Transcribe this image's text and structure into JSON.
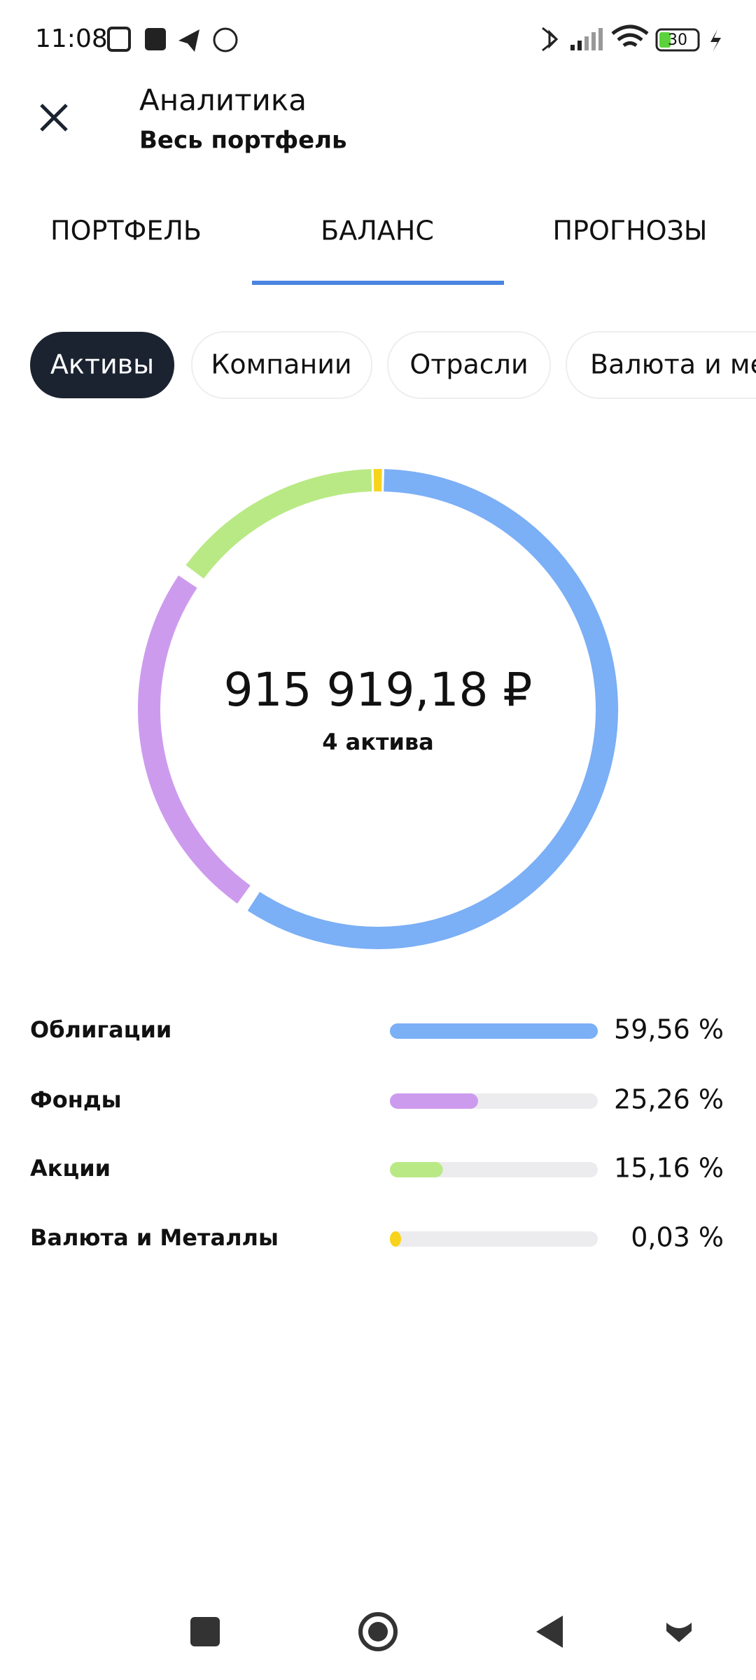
{
  "status_bar": {
    "time": "11:08",
    "battery": "30"
  },
  "header": {
    "title": "Аналитика",
    "subtitle": "Весь портфель"
  },
  "tabs": [
    "ПОРТФЕЛЬ",
    "БАЛАНС",
    "ПРОГНОЗЫ"
  ],
  "chips": [
    "Активы",
    "Компании",
    "Отрасли",
    "Валюта и металлы"
  ],
  "chart_data": {
    "type": "donut",
    "total": "915 919,18 ₽",
    "subtitle": "4 актива",
    "categories": [
      "Облигации",
      "Фонды",
      "Акции",
      "Валюта и Металлы"
    ],
    "values": [
      59.56,
      25.26,
      15.16,
      0.03
    ],
    "value_labels": [
      "59,56 %",
      "25,26 %",
      "15,16 %",
      "0,03 %"
    ],
    "colors": [
      "#7baff6",
      "#cd9bee",
      "#b9e985",
      "#f8d31b"
    ]
  }
}
